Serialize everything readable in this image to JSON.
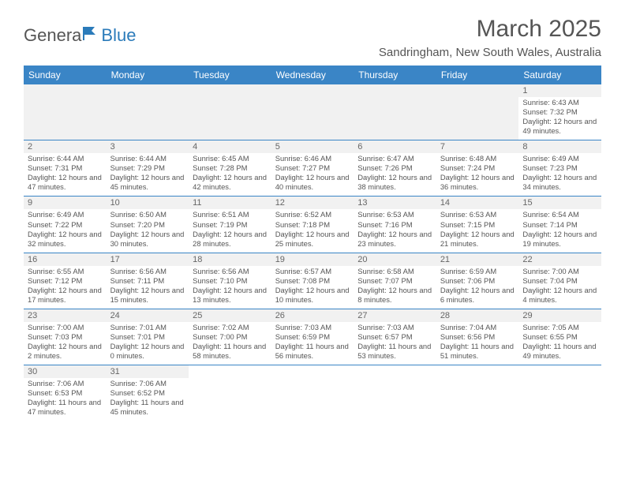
{
  "logo": {
    "text_general": "Genera",
    "text_blue": "Blue"
  },
  "title": "March 2025",
  "location": "Sandringham, New South Wales, Australia",
  "header_bg": "#3a85c6",
  "header_fg": "#ffffff",
  "text_color": "#555555",
  "cell_border_color": "#3a85c6",
  "shade_bg": "#f1f1f1",
  "font_family": "Arial",
  "title_fontsize": 30,
  "location_fontsize": 15,
  "dayhdr_fontsize": 12,
  "cell_fontsize": 9.4,
  "day_names": [
    "Sunday",
    "Monday",
    "Tuesday",
    "Wednesday",
    "Thursday",
    "Friday",
    "Saturday"
  ],
  "weeks": [
    [
      null,
      null,
      null,
      null,
      null,
      null,
      {
        "d": "1",
        "sr": "6:43 AM",
        "ss": "7:32 PM",
        "dl": "12 hours and 49 minutes."
      }
    ],
    [
      {
        "d": "2",
        "sr": "6:44 AM",
        "ss": "7:31 PM",
        "dl": "12 hours and 47 minutes."
      },
      {
        "d": "3",
        "sr": "6:44 AM",
        "ss": "7:29 PM",
        "dl": "12 hours and 45 minutes."
      },
      {
        "d": "4",
        "sr": "6:45 AM",
        "ss": "7:28 PM",
        "dl": "12 hours and 42 minutes."
      },
      {
        "d": "5",
        "sr": "6:46 AM",
        "ss": "7:27 PM",
        "dl": "12 hours and 40 minutes."
      },
      {
        "d": "6",
        "sr": "6:47 AM",
        "ss": "7:26 PM",
        "dl": "12 hours and 38 minutes."
      },
      {
        "d": "7",
        "sr": "6:48 AM",
        "ss": "7:24 PM",
        "dl": "12 hours and 36 minutes."
      },
      {
        "d": "8",
        "sr": "6:49 AM",
        "ss": "7:23 PM",
        "dl": "12 hours and 34 minutes."
      }
    ],
    [
      {
        "d": "9",
        "sr": "6:49 AM",
        "ss": "7:22 PM",
        "dl": "12 hours and 32 minutes."
      },
      {
        "d": "10",
        "sr": "6:50 AM",
        "ss": "7:20 PM",
        "dl": "12 hours and 30 minutes."
      },
      {
        "d": "11",
        "sr": "6:51 AM",
        "ss": "7:19 PM",
        "dl": "12 hours and 28 minutes."
      },
      {
        "d": "12",
        "sr": "6:52 AM",
        "ss": "7:18 PM",
        "dl": "12 hours and 25 minutes."
      },
      {
        "d": "13",
        "sr": "6:53 AM",
        "ss": "7:16 PM",
        "dl": "12 hours and 23 minutes."
      },
      {
        "d": "14",
        "sr": "6:53 AM",
        "ss": "7:15 PM",
        "dl": "12 hours and 21 minutes."
      },
      {
        "d": "15",
        "sr": "6:54 AM",
        "ss": "7:14 PM",
        "dl": "12 hours and 19 minutes."
      }
    ],
    [
      {
        "d": "16",
        "sr": "6:55 AM",
        "ss": "7:12 PM",
        "dl": "12 hours and 17 minutes."
      },
      {
        "d": "17",
        "sr": "6:56 AM",
        "ss": "7:11 PM",
        "dl": "12 hours and 15 minutes."
      },
      {
        "d": "18",
        "sr": "6:56 AM",
        "ss": "7:10 PM",
        "dl": "12 hours and 13 minutes."
      },
      {
        "d": "19",
        "sr": "6:57 AM",
        "ss": "7:08 PM",
        "dl": "12 hours and 10 minutes."
      },
      {
        "d": "20",
        "sr": "6:58 AM",
        "ss": "7:07 PM",
        "dl": "12 hours and 8 minutes."
      },
      {
        "d": "21",
        "sr": "6:59 AM",
        "ss": "7:06 PM",
        "dl": "12 hours and 6 minutes."
      },
      {
        "d": "22",
        "sr": "7:00 AM",
        "ss": "7:04 PM",
        "dl": "12 hours and 4 minutes."
      }
    ],
    [
      {
        "d": "23",
        "sr": "7:00 AM",
        "ss": "7:03 PM",
        "dl": "12 hours and 2 minutes."
      },
      {
        "d": "24",
        "sr": "7:01 AM",
        "ss": "7:01 PM",
        "dl": "12 hours and 0 minutes."
      },
      {
        "d": "25",
        "sr": "7:02 AM",
        "ss": "7:00 PM",
        "dl": "11 hours and 58 minutes."
      },
      {
        "d": "26",
        "sr": "7:03 AM",
        "ss": "6:59 PM",
        "dl": "11 hours and 56 minutes."
      },
      {
        "d": "27",
        "sr": "7:03 AM",
        "ss": "6:57 PM",
        "dl": "11 hours and 53 minutes."
      },
      {
        "d": "28",
        "sr": "7:04 AM",
        "ss": "6:56 PM",
        "dl": "11 hours and 51 minutes."
      },
      {
        "d": "29",
        "sr": "7:05 AM",
        "ss": "6:55 PM",
        "dl": "11 hours and 49 minutes."
      }
    ],
    [
      {
        "d": "30",
        "sr": "7:06 AM",
        "ss": "6:53 PM",
        "dl": "11 hours and 47 minutes."
      },
      {
        "d": "31",
        "sr": "7:06 AM",
        "ss": "6:52 PM",
        "dl": "11 hours and 45 minutes."
      },
      null,
      null,
      null,
      null,
      null
    ]
  ],
  "labels": {
    "sunrise": "Sunrise: ",
    "sunset": "Sunset: ",
    "daylight": "Daylight: "
  }
}
